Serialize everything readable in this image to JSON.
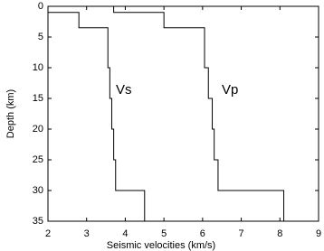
{
  "chart_data": {
    "type": "line",
    "xlabel": "Seismic velocities (km/s)",
    "ylabel": "Depth (km)",
    "xlim": [
      2,
      9
    ],
    "xticks": [
      2,
      3,
      4,
      5,
      6,
      7,
      8,
      9
    ],
    "ylim": [
      0,
      35
    ],
    "yticks": [
      0,
      5,
      10,
      15,
      20,
      25,
      30,
      35
    ],
    "invert_y": true,
    "series": [
      {
        "name": "Vs",
        "color": "#000000",
        "x": [
          2.0,
          2.0,
          2.8,
          2.8,
          3.55,
          3.55,
          3.6,
          3.6,
          3.65,
          3.65,
          3.7,
          3.7,
          3.75,
          3.75,
          4.5,
          4.5
        ],
        "y": [
          0,
          1,
          1,
          3.5,
          3.5,
          10,
          10,
          15,
          15,
          20,
          20,
          25,
          25,
          30,
          30,
          35
        ]
      },
      {
        "name": "Vp",
        "color": "#000000",
        "x": [
          3.7,
          3.7,
          5.0,
          5.0,
          6.05,
          6.05,
          6.15,
          6.15,
          6.25,
          6.25,
          6.3,
          6.3,
          6.4,
          6.4,
          8.1,
          8.1
        ],
        "y": [
          0,
          1,
          1,
          3.5,
          3.5,
          10,
          10,
          15,
          15,
          20,
          20,
          25,
          25,
          30,
          30,
          35
        ]
      }
    ]
  }
}
